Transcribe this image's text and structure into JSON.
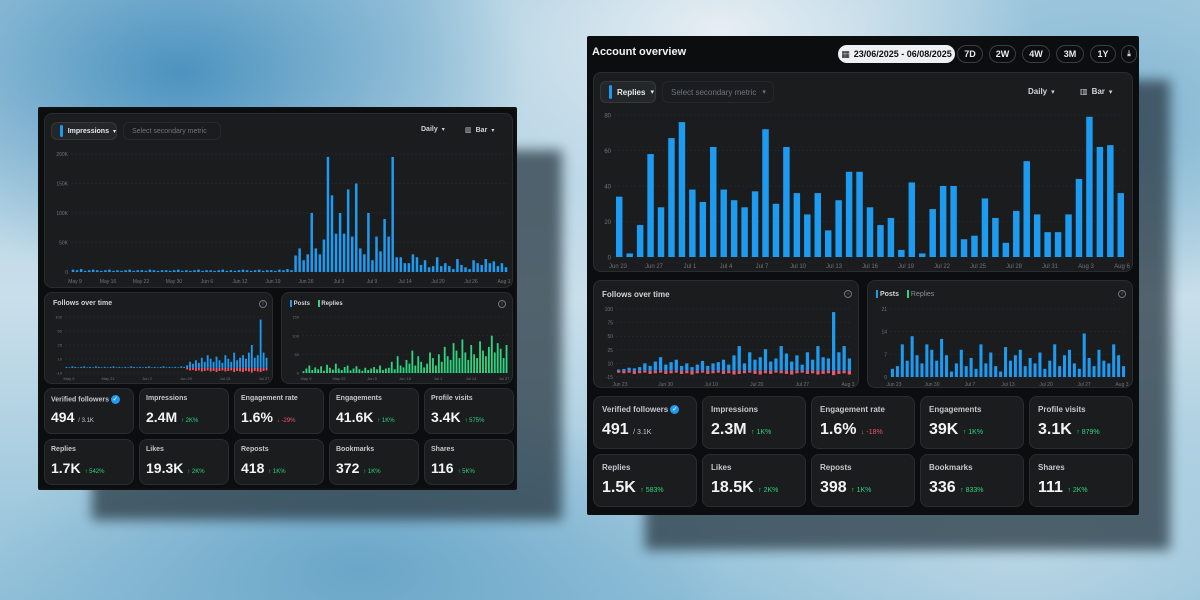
{
  "left": {
    "primary_metric": "Impressions",
    "secondary_placeholder": "Select secondary metric",
    "interval": "Daily",
    "chart_type": "Bar",
    "follows_title": "Follows over time",
    "legend_posts": "Posts",
    "legend_replies": "Replies",
    "metrics": [
      {
        "label": "Verified followers",
        "value": "494",
        "sub": "/ 3.1K",
        "verified": true
      },
      {
        "label": "Impressions",
        "value": "2.4M",
        "delta": "↑ 2K%"
      },
      {
        "label": "Engagement rate",
        "value": "1.6%",
        "delta": "↓ -29%",
        "negative": true
      },
      {
        "label": "Engagements",
        "value": "41.6K",
        "delta": "↑ 1K%"
      },
      {
        "label": "Profile visits",
        "value": "3.4K",
        "delta": "↑ 575%"
      },
      {
        "label": "Replies",
        "value": "1.7K",
        "delta": "↑ 542%"
      },
      {
        "label": "Likes",
        "value": "19.3K",
        "delta": "↑ 2K%"
      },
      {
        "label": "Reposts",
        "value": "418",
        "delta": "↑ 1K%"
      },
      {
        "label": "Bookmarks",
        "value": "372",
        "delta": "↑ 1K%"
      },
      {
        "label": "Shares",
        "value": "116",
        "delta": "↑ 5K%"
      }
    ]
  },
  "right": {
    "title": "Account overview",
    "date_range": "23/06/2025 - 06/08/2025",
    "ranges": [
      "7D",
      "2W",
      "4W",
      "3M",
      "1Y"
    ],
    "primary_metric": "Replies",
    "secondary_placeholder": "Select secondary metric",
    "interval": "Daily",
    "chart_type": "Bar",
    "follows_title": "Follows over time",
    "legend_posts": "Posts",
    "legend_replies": "Replies",
    "metrics": [
      {
        "label": "Verified followers",
        "value": "491",
        "sub": "/ 3.1K",
        "verified": true
      },
      {
        "label": "Impressions",
        "value": "2.3M",
        "delta": "↑ 1K%"
      },
      {
        "label": "Engagement rate",
        "value": "1.6%",
        "delta": "↓ -18%",
        "negative": true
      },
      {
        "label": "Engagements",
        "value": "39K",
        "delta": "↑ 1K%"
      },
      {
        "label": "Profile visits",
        "value": "3.1K",
        "delta": "↑ 879%"
      },
      {
        "label": "Replies",
        "value": "1.5K",
        "delta": "↑ 583%"
      },
      {
        "label": "Likes",
        "value": "18.5K",
        "delta": "↑ 2K%"
      },
      {
        "label": "Reposts",
        "value": "398",
        "delta": "↑ 1K%"
      },
      {
        "label": "Bookmarks",
        "value": "336",
        "delta": "↑ 833%"
      },
      {
        "label": "Shares",
        "value": "111",
        "delta": "↑ 2K%"
      }
    ]
  },
  "colors": {
    "accent": "#1d9bf0",
    "posts": "#1d9bf0",
    "replies": "#2fd47e",
    "negative": "#f0566b",
    "positive": "#2fd47e"
  },
  "chart_data": [
    {
      "id": "left-main",
      "type": "bar",
      "title": "Impressions",
      "ylim": [
        0,
        200000
      ],
      "yticks": [
        "0",
        "50K",
        "100K",
        "150K",
        "200K"
      ],
      "xticks": [
        "May 9",
        "May 16",
        "May 22",
        "May 30",
        "Jun 6",
        "Jun 12",
        "Jun 19",
        "Jun 26",
        "Jul 3",
        "Jul 9",
        "Jul 14",
        "Jul 20",
        "Jul 26",
        "Aug 1"
      ],
      "values": [
        4000,
        3000,
        5000,
        2000,
        3000,
        4000,
        3000,
        2000,
        3000,
        4000,
        2000,
        3000,
        2000,
        3000,
        4000,
        2000,
        3000,
        3000,
        2000,
        4000,
        3000,
        2000,
        3000,
        3000,
        2000,
        3000,
        4000,
        2000,
        3000,
        2000,
        3000,
        4000,
        2000,
        3000,
        3000,
        2000,
        3000,
        4000,
        2000,
        3000,
        2000,
        3000,
        4000,
        3000,
        2000,
        3000,
        4000,
        2000,
        3000,
        3000,
        2000,
        4000,
        3000,
        5000,
        3000,
        28000,
        40000,
        20000,
        30000,
        100000,
        40000,
        30000,
        55000,
        195000,
        130000,
        65000,
        100000,
        65000,
        140000,
        60000,
        150000,
        40000,
        30000,
        100000,
        20000,
        60000,
        35000,
        90000,
        60000,
        195000,
        25000,
        25000,
        15000,
        15000,
        30000,
        25000,
        12000,
        20000,
        8000,
        10000,
        25000,
        10000,
        15000,
        10000,
        5000,
        22000,
        12000,
        8000,
        5000,
        20000,
        15000,
        12000,
        22000,
        15000,
        18000,
        10000,
        15000,
        8000
      ]
    },
    {
      "id": "left-follows",
      "type": "bar",
      "title": "Follows over time",
      "ylim": [
        -10,
        100
      ],
      "yticks": [
        "-10",
        "10",
        "25",
        "50",
        "100"
      ],
      "xticks": [
        "May 9",
        "May 21",
        "Jun 2",
        "Jun 20",
        "Jul 15",
        "Jul 27"
      ],
      "values": [
        2,
        1,
        3,
        2,
        1,
        2,
        3,
        1,
        2,
        1,
        3,
        2,
        1,
        2,
        1,
        2,
        3,
        1,
        2,
        1,
        2,
        1,
        3,
        2,
        1,
        2,
        1,
        2,
        3,
        1,
        2,
        1,
        2,
        3,
        1,
        2,
        1,
        2,
        1,
        3,
        2,
        5,
        12,
        8,
        15,
        10,
        20,
        12,
        25,
        18,
        12,
        22,
        15,
        10,
        25,
        18,
        12,
        30,
        15,
        20,
        25,
        18,
        30,
        45,
        20,
        25,
        95,
        30,
        20
      ],
      "negatives": [
        0,
        0,
        0,
        0,
        0,
        0,
        0,
        0,
        0,
        0,
        0,
        0,
        0,
        0,
        0,
        0,
        0,
        0,
        0,
        0,
        0,
        0,
        0,
        0,
        0,
        0,
        0,
        0,
        0,
        0,
        0,
        0,
        0,
        0,
        0,
        0,
        0,
        0,
        0,
        0,
        0,
        -3,
        -5,
        -4,
        -6,
        -5,
        -7,
        -6,
        -5,
        -7,
        -6,
        -8,
        -6,
        -5,
        -7,
        -6,
        -5,
        -8,
        -6,
        -7,
        -8,
        -6,
        -7,
        -9,
        -6,
        -7,
        -8,
        -6,
        -5
      ]
    },
    {
      "id": "left-posts",
      "type": "bar",
      "title": "Posts / Replies",
      "ylim": [
        0,
        150
      ],
      "yticks": [
        "0",
        "50",
        "100",
        "150"
      ],
      "xticks": [
        "May 9",
        "May 22",
        "Jun 5",
        "Jun 18",
        "Jul 1",
        "Jul 14",
        "Jul 27"
      ],
      "series": [
        {
          "name": "Posts",
          "values": [
            3,
            2,
            4,
            3,
            2,
            3,
            2,
            4,
            3,
            2,
            3,
            4,
            2,
            3,
            2,
            4,
            3,
            2,
            3,
            4,
            2,
            3,
            4,
            3,
            2,
            3,
            4,
            2,
            3,
            4,
            3,
            2,
            3,
            4,
            2,
            3,
            4,
            3,
            2,
            3,
            4,
            3,
            5,
            4,
            3,
            5,
            6,
            4,
            5,
            6,
            4,
            5,
            6,
            4,
            5,
            6,
            4,
            5,
            6,
            5,
            4,
            6,
            5,
            4,
            6,
            5,
            4,
            6,
            5,
            4
          ]
        },
        {
          "name": "Replies",
          "values": [
            5,
            12,
            20,
            8,
            15,
            10,
            18,
            6,
            22,
            14,
            9,
            25,
            12,
            8,
            16,
            20,
            7,
            12,
            18,
            10,
            6,
            14,
            8,
            12,
            16,
            10,
            20,
            8,
            12,
            14,
            30,
            10,
            45,
            20,
            15,
            35,
            25,
            60,
            20,
            45,
            30,
            15,
            25,
            55,
            40,
            20,
            50,
            30,
            70,
            45,
            35,
            80,
            60,
            40,
            90,
            55,
            35,
            75,
            50,
            40,
            85,
            60,
            45,
            70,
            100,
            55,
            80,
            65,
            40,
            75
          ]
        }
      ]
    },
    {
      "id": "right-main",
      "type": "bar",
      "title": "Replies",
      "ylim": [
        0,
        80
      ],
      "yticks": [
        "0",
        "20",
        "40",
        "60",
        "80"
      ],
      "xticks": [
        "Jun 23",
        "Jun 27",
        "Jul 1",
        "Jul 4",
        "Jul 7",
        "Jul 10",
        "Jul 13",
        "Jul 16",
        "Jul 19",
        "Jul 22",
        "Jul 25",
        "Jul 28",
        "Jul 31",
        "Aug 3",
        "Aug 6"
      ],
      "values": [
        34,
        2,
        18,
        58,
        28,
        67,
        76,
        38,
        31,
        62,
        38,
        32,
        28,
        37,
        72,
        30,
        62,
        36,
        24,
        36,
        15,
        32,
        48,
        48,
        28,
        18,
        22,
        4,
        42,
        2,
        27,
        40,
        40,
        10,
        12,
        33,
        22,
        8,
        26,
        54,
        24,
        14,
        14,
        24,
        44,
        79,
        62,
        63,
        36
      ]
    },
    {
      "id": "right-follows",
      "type": "bar",
      "title": "Follows over time",
      "ylim": [
        -10,
        100
      ],
      "yticks": [
        "-15",
        "10",
        "25",
        "50",
        "75",
        "100"
      ],
      "xticks": [
        "Jun 23",
        "Jun 30",
        "Jul 10",
        "Jul 20",
        "Jul 27",
        "Aug 3"
      ],
      "values": [
        2,
        3,
        5,
        4,
        6,
        12,
        8,
        15,
        22,
        10,
        14,
        18,
        8,
        12,
        6,
        10,
        16,
        8,
        12,
        14,
        18,
        10,
        25,
        40,
        12,
        30,
        18,
        22,
        35,
        15,
        20,
        40,
        28,
        15,
        25,
        10,
        30,
        18,
        40,
        22,
        20,
        95,
        30,
        40,
        20
      ],
      "negatives": [
        -3,
        -4,
        -3,
        -5,
        -4,
        -3,
        -5,
        -4,
        -3,
        -5,
        -4,
        -3,
        -5,
        -4,
        -6,
        -4,
        -3,
        -5,
        -4,
        -3,
        -5,
        -4,
        -6,
        -5,
        -4,
        -3,
        -5,
        -6,
        -4,
        -5,
        -3,
        -4,
        -5,
        -6,
        -4,
        -3,
        -5,
        -4,
        -6,
        -5,
        -4,
        -7,
        -5,
        -4,
        -6
      ]
    },
    {
      "id": "right-posts",
      "type": "bar",
      "title": "Posts / Replies",
      "ylim": [
        0,
        25
      ],
      "yticks": [
        "0",
        "7",
        "14",
        "21"
      ],
      "xticks": [
        "Jun 23",
        "Jun 30",
        "Jul 7",
        "Jul 13",
        "Jul 20",
        "Jul 27",
        "Aug 3"
      ],
      "series": [
        {
          "name": "Posts",
          "values": [
            3,
            4,
            12,
            6,
            15,
            8,
            5,
            12,
            10,
            6,
            14,
            8,
            2,
            5,
            10,
            4,
            7,
            3,
            12,
            5,
            9,
            4,
            2,
            11,
            6,
            8,
            10,
            4,
            7,
            5,
            9,
            3,
            6,
            12,
            4,
            8,
            10,
            5,
            3,
            16,
            7,
            4,
            10,
            6,
            5,
            12,
            8,
            4
          ]
        }
      ]
    }
  ]
}
